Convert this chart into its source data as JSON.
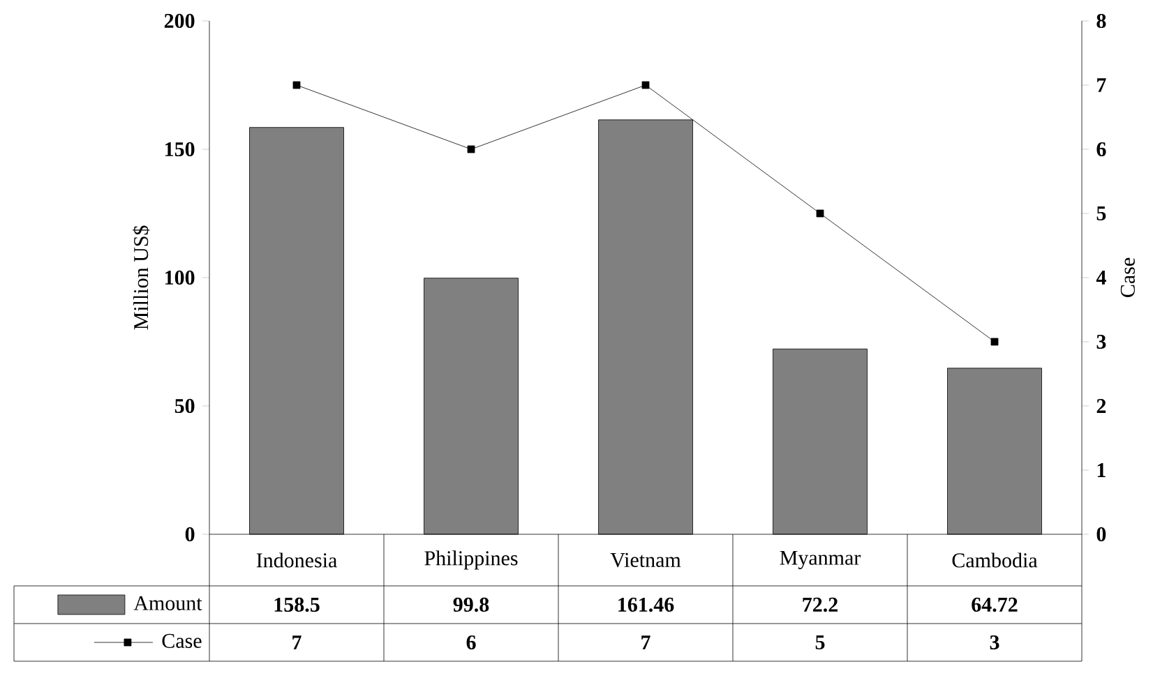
{
  "chart_data": {
    "type": "bar",
    "categories": [
      "Indonesia",
      "Philippines",
      "Vietnam",
      "Myanmar",
      "Cambodia"
    ],
    "series": [
      {
        "name": "Amount",
        "color": "#808080",
        "values": [
          158.5,
          99.8,
          161.46,
          72.2,
          64.72
        ]
      },
      {
        "name": "Case",
        "type": "line",
        "axis": "y2",
        "color": "#000000",
        "values": [
          7,
          6,
          7,
          5,
          3
        ]
      }
    ],
    "ylabel": "Million US$",
    "y2label": "Case",
    "ylim": [
      0,
      200
    ],
    "yticks": [
      0,
      50,
      100,
      150,
      200
    ],
    "y2lim": [
      0,
      8
    ],
    "y2ticks": [
      0,
      1,
      2,
      3,
      4,
      5,
      6,
      7,
      8
    ],
    "data_labels": true,
    "legend": "bottom",
    "marker": "square",
    "line_style": "solid"
  }
}
